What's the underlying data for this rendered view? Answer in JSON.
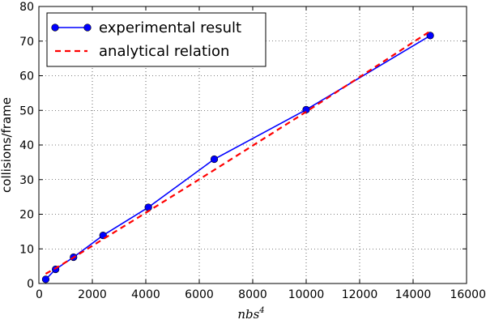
{
  "chart_data": {
    "type": "line",
    "title": "",
    "xlabel_base": "nbs",
    "xlabel_exp": "4",
    "ylabel": "collisions/frame",
    "xlim": [
      0,
      16000
    ],
    "ylim": [
      0,
      80
    ],
    "xticks": [
      0,
      2000,
      4000,
      6000,
      8000,
      10000,
      12000,
      14000,
      16000
    ],
    "yticks": [
      0,
      10,
      20,
      30,
      40,
      50,
      60,
      70,
      80
    ],
    "grid": true,
    "legend_position": "top-left",
    "series": [
      {
        "name": "experimental result",
        "style": "solid-markers",
        "color": "#0000ff",
        "x": [
          256,
          625,
          1296,
          2401,
          4096,
          6561,
          10000,
          14641
        ],
        "y": [
          1.2,
          4.1,
          7.6,
          13.9,
          22.0,
          35.9,
          50.2,
          71.6
        ]
      },
      {
        "name": "analytical relation",
        "style": "dashed",
        "color": "#ff0000",
        "x": [
          256,
          625,
          1296,
          2401,
          4096,
          6561,
          10000,
          14641
        ],
        "y": [
          2.8,
          4.4,
          7.5,
          12.8,
          20.9,
          32.8,
          49.6,
          72.9
        ]
      }
    ]
  }
}
